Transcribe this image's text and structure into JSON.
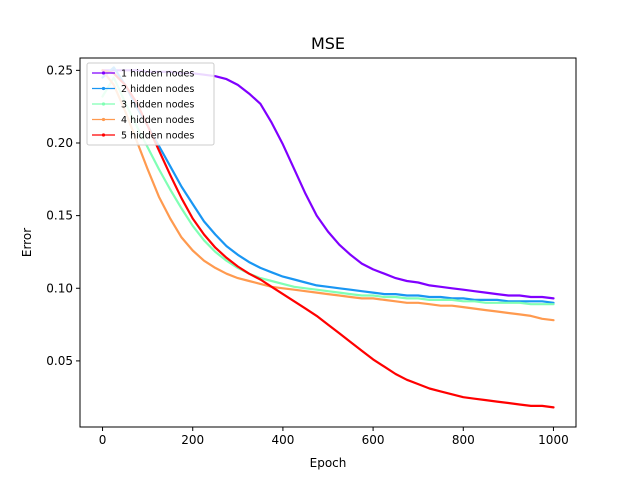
{
  "chart_data": {
    "type": "line",
    "title": "MSE",
    "xlabel": "Epoch",
    "ylabel": "Error",
    "xlim": [
      -50,
      1050
    ],
    "ylim": [
      0.0045,
      0.2585
    ],
    "xticks": [
      0,
      200,
      400,
      600,
      800,
      1000
    ],
    "xtick_labels": [
      "0",
      "200",
      "400",
      "600",
      "800",
      "1000"
    ],
    "yticks": [
      0.05,
      0.1,
      0.15,
      0.2,
      0.25
    ],
    "ytick_labels": [
      "0.05",
      "0.10",
      "0.15",
      "0.20",
      "0.25"
    ],
    "grid": false,
    "legend_position": "top-left",
    "x": [
      0,
      25,
      50,
      75,
      100,
      125,
      150,
      175,
      200,
      225,
      250,
      275,
      300,
      325,
      350,
      375,
      400,
      425,
      450,
      475,
      500,
      525,
      550,
      575,
      600,
      625,
      650,
      675,
      700,
      725,
      750,
      775,
      800,
      825,
      850,
      875,
      900,
      925,
      950,
      975,
      1000
    ],
    "series": [
      {
        "name": "1 hidden nodes",
        "color": "#8000ff",
        "values": [
          0.25,
          0.25,
          0.25,
          0.25,
          0.249,
          0.249,
          0.249,
          0.248,
          0.248,
          0.247,
          0.246,
          0.244,
          0.24,
          0.234,
          0.227,
          0.214,
          0.199,
          0.182,
          0.165,
          0.15,
          0.139,
          0.13,
          0.123,
          0.117,
          0.113,
          0.11,
          0.107,
          0.105,
          0.104,
          0.102,
          0.101,
          0.1,
          0.099,
          0.098,
          0.097,
          0.096,
          0.095,
          0.095,
          0.094,
          0.094,
          0.093
        ]
      },
      {
        "name": "2 hidden nodes",
        "color": "#1996f3",
        "values": [
          0.245,
          0.252,
          0.24,
          0.225,
          0.212,
          0.198,
          0.184,
          0.17,
          0.158,
          0.146,
          0.137,
          0.129,
          0.123,
          0.118,
          0.114,
          0.111,
          0.108,
          0.106,
          0.104,
          0.102,
          0.101,
          0.1,
          0.099,
          0.098,
          0.097,
          0.096,
          0.096,
          0.095,
          0.095,
          0.094,
          0.094,
          0.093,
          0.093,
          0.092,
          0.092,
          0.092,
          0.091,
          0.091,
          0.091,
          0.091,
          0.09
        ]
      },
      {
        "name": "3 hidden nodes",
        "color": "#80ffb4",
        "values": [
          0.232,
          0.245,
          0.228,
          0.212,
          0.197,
          0.182,
          0.168,
          0.155,
          0.143,
          0.133,
          0.125,
          0.119,
          0.114,
          0.11,
          0.107,
          0.105,
          0.103,
          0.101,
          0.1,
          0.099,
          0.098,
          0.097,
          0.096,
          0.095,
          0.095,
          0.094,
          0.094,
          0.093,
          0.093,
          0.092,
          0.092,
          0.092,
          0.091,
          0.091,
          0.09,
          0.09,
          0.09,
          0.09,
          0.089,
          0.089,
          0.089
        ]
      },
      {
        "name": "4 hidden nodes",
        "color": "#ff9a4f",
        "values": [
          0.25,
          0.24,
          0.222,
          0.202,
          0.182,
          0.163,
          0.148,
          0.135,
          0.126,
          0.119,
          0.114,
          0.11,
          0.107,
          0.105,
          0.103,
          0.101,
          0.1,
          0.099,
          0.098,
          0.097,
          0.096,
          0.095,
          0.094,
          0.093,
          0.093,
          0.092,
          0.091,
          0.09,
          0.09,
          0.089,
          0.088,
          0.088,
          0.087,
          0.086,
          0.085,
          0.084,
          0.083,
          0.082,
          0.081,
          0.079,
          0.078
        ]
      },
      {
        "name": "5 hidden nodes",
        "color": "#ff0000",
        "values": [
          0.25,
          0.248,
          0.24,
          0.228,
          0.212,
          0.195,
          0.178,
          0.162,
          0.148,
          0.137,
          0.128,
          0.121,
          0.115,
          0.11,
          0.106,
          0.101,
          0.096,
          0.091,
          0.086,
          0.081,
          0.075,
          0.069,
          0.063,
          0.057,
          0.051,
          0.046,
          0.041,
          0.037,
          0.034,
          0.031,
          0.029,
          0.027,
          0.025,
          0.024,
          0.023,
          0.022,
          0.021,
          0.02,
          0.019,
          0.019,
          0.018
        ]
      }
    ]
  }
}
